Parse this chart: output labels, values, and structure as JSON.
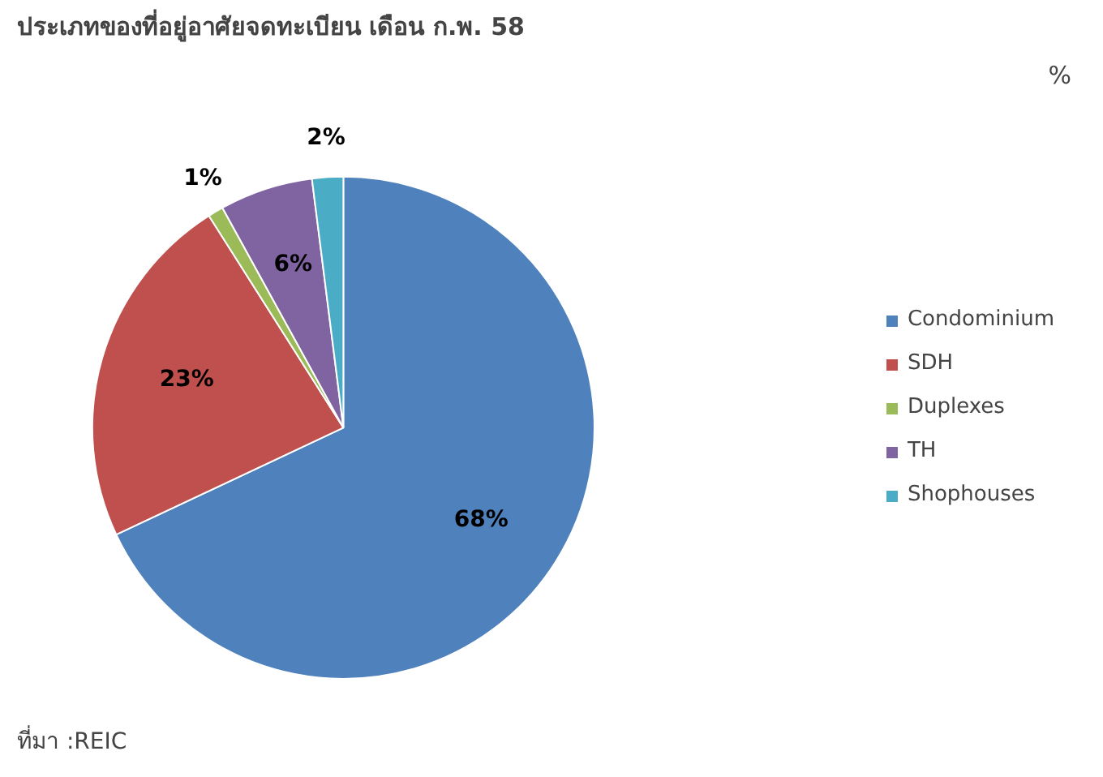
{
  "chart_data": {
    "type": "pie",
    "title": "ประเภทของที่อยู่อาศัยจดทะเบียน เดือน ก.พ. 58",
    "subtitle": "%",
    "categories": [
      "Condominium",
      "SDH",
      "Duplexes",
      "TH",
      "Shophouses"
    ],
    "values": [
      68,
      23,
      1,
      6,
      2
    ],
    "colors": [
      "#4f81bd",
      "#c0504d",
      "#9bbb59",
      "#8064a2",
      "#4bacc6"
    ],
    "value_labels": [
      "68%",
      "23%",
      "1%",
      "6%",
      "2%"
    ],
    "legend": "right",
    "annotations": [
      "ที่มา :REIC"
    ]
  }
}
